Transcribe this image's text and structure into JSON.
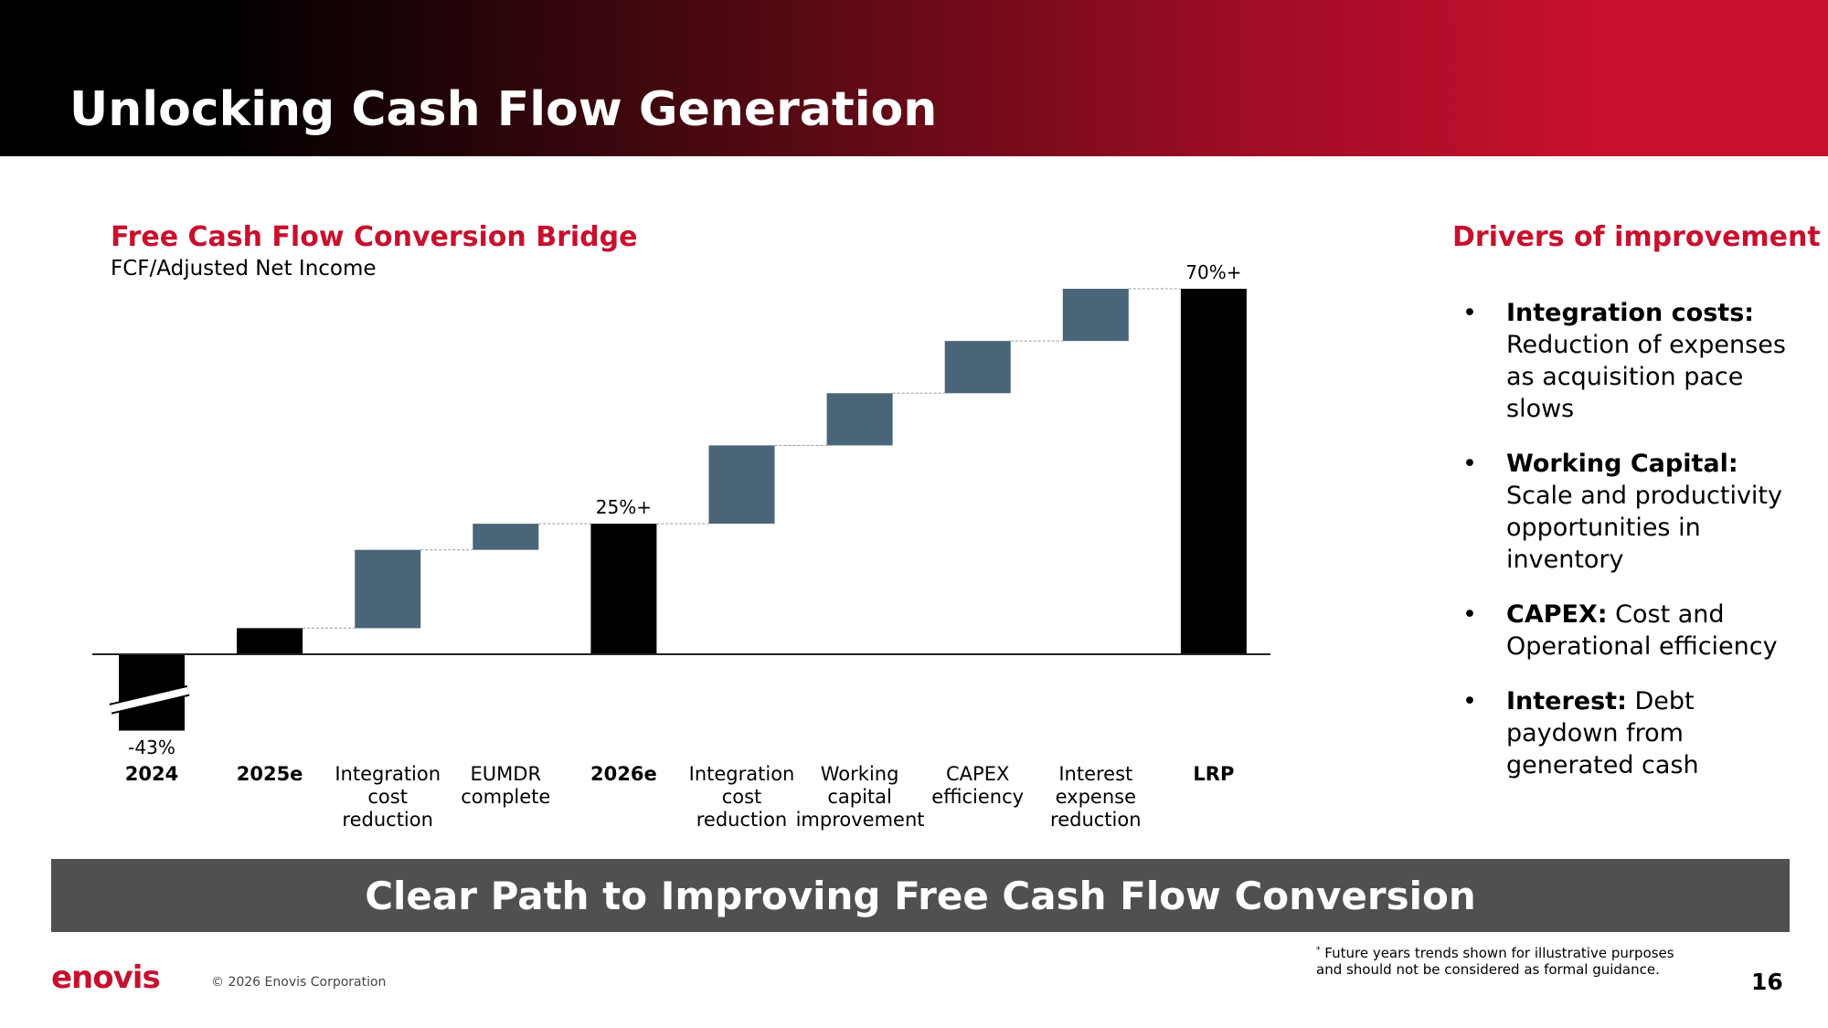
{
  "header": {
    "title": "Unlocking Cash Flow Generation"
  },
  "chart_data": {
    "type": "waterfall",
    "title": "Free Cash Flow Conversion Bridge",
    "subtitle": "FCF/Adjusted Net Income",
    "categories": [
      "2024",
      "2025e",
      "Integration cost reduction",
      "EUMDR complete",
      "2026e",
      "Integration cost reduction",
      "Working capital improvement",
      "CAPEX efficiency",
      "Interest expense reduction",
      "LRP"
    ],
    "values": [
      -43,
      5,
      15,
      5,
      25,
      15,
      10,
      10,
      10,
      70
    ],
    "value_labels": [
      "-43%",
      null,
      null,
      null,
      "25%+",
      null,
      null,
      null,
      null,
      "70%+"
    ],
    "measure": [
      "total",
      "total",
      "delta",
      "delta",
      "total",
      "delta",
      "delta",
      "delta",
      "delta",
      "total"
    ],
    "colors": {
      "total": "#000000",
      "delta": "#4a6577"
    }
  },
  "drivers": {
    "title": "Drivers of improvement",
    "items": [
      {
        "label": "Integration costs:",
        "text": "Reduction of expenses as acquisition pace slows"
      },
      {
        "label": "Working Capital:",
        "text": "Scale and productivity opportunities in inventory"
      },
      {
        "label": "CAPEX:",
        "text": "Cost and Operational efficiency"
      },
      {
        "label": "Interest:",
        "text": "Debt paydown from generated cash"
      }
    ]
  },
  "banner": {
    "text": "Clear Path to Improving Free Cash Flow Conversion"
  },
  "footer": {
    "logo": "enovis",
    "copyright": "© 2026 Enovis Corporation",
    "footnote_mark": "*",
    "footnote": "Future years trends shown for illustrative purposes and should not be considered as formal guidance.",
    "page": 16
  }
}
